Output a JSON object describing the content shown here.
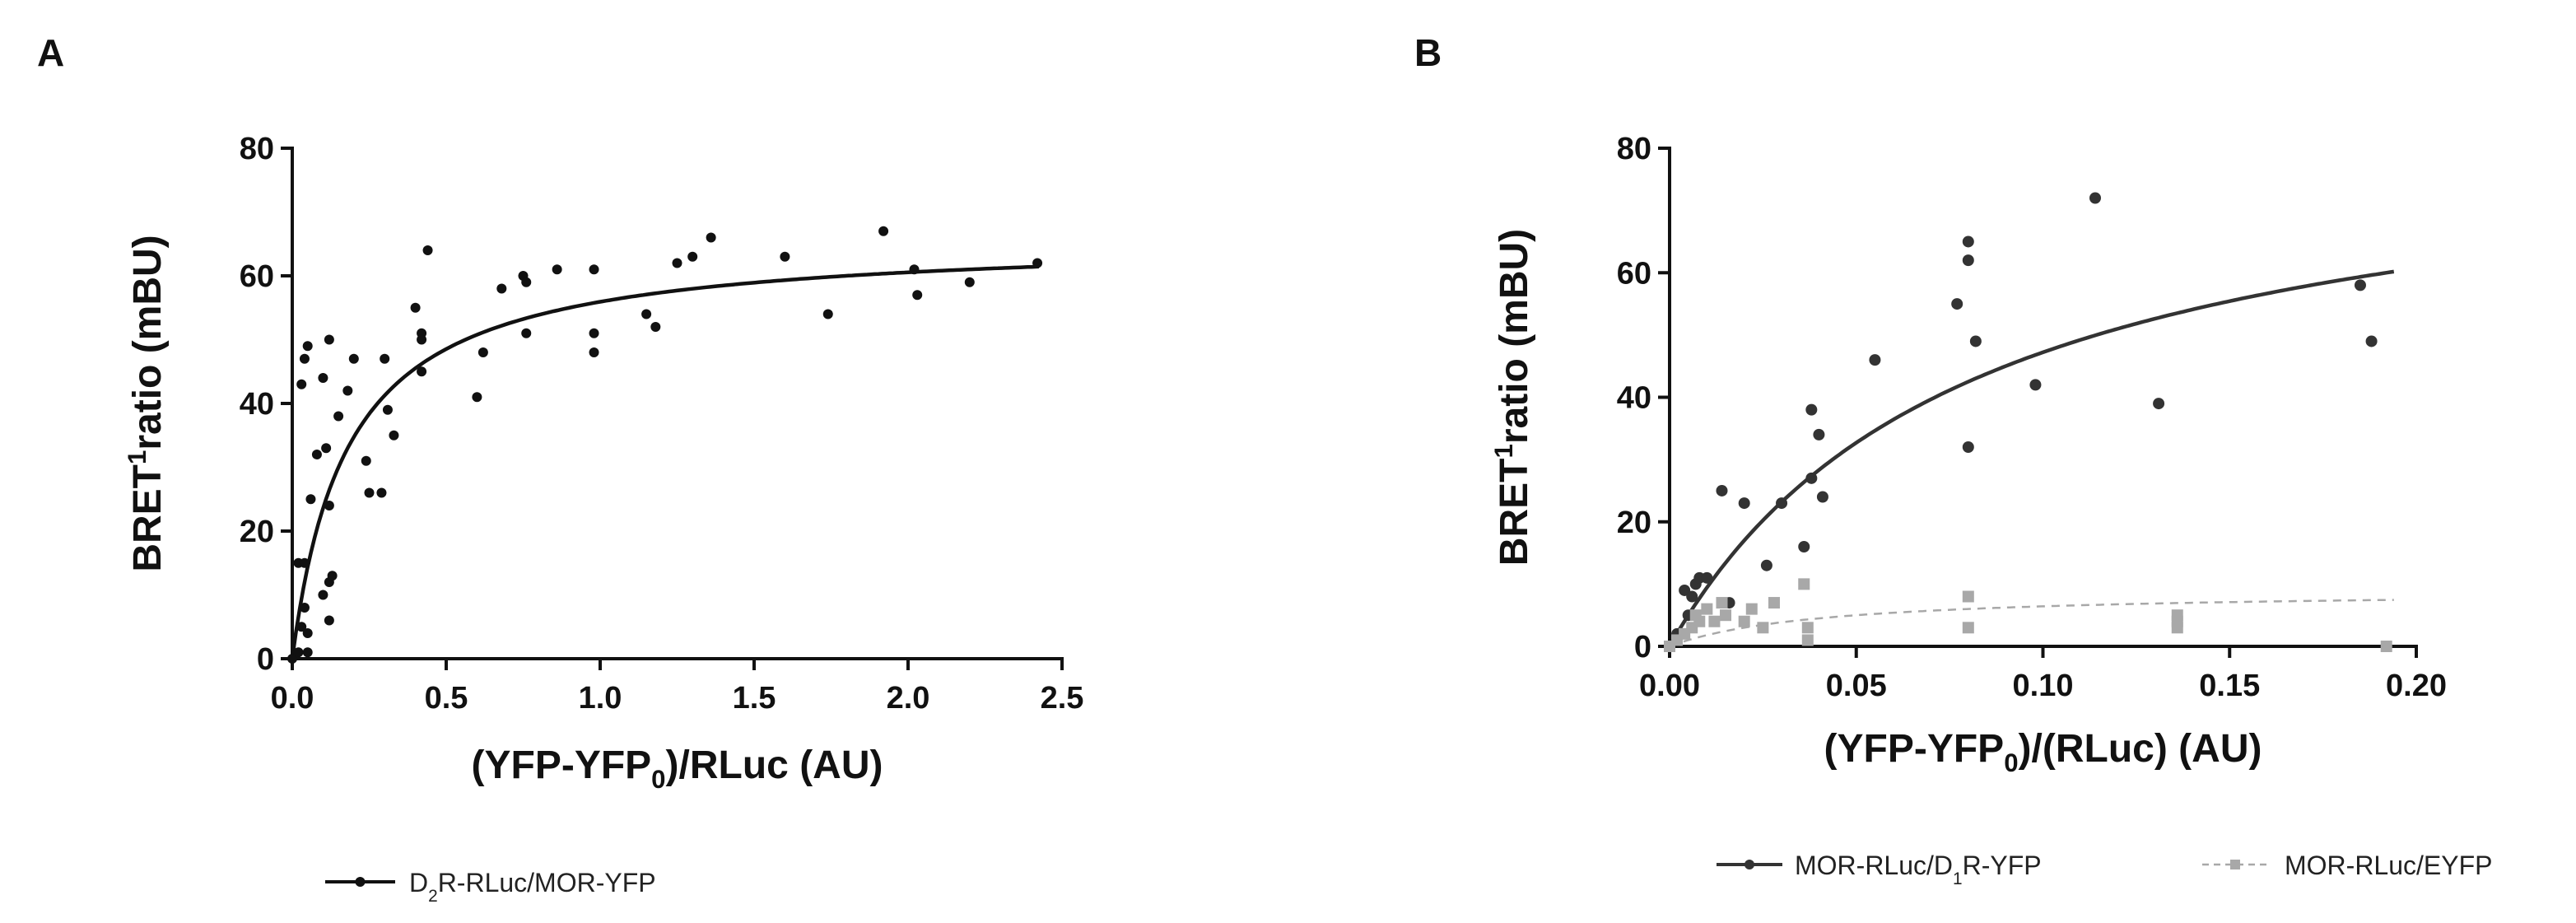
{
  "chart_data": [
    {
      "panel": "A",
      "type": "scatter",
      "title": "",
      "ylabel": "BRET¹ratio (mBU)",
      "ylabel_parts": [
        "BRET",
        "1",
        "ratio (mBU)"
      ],
      "xlabel": "(YFP-YFP0)/RLuc (AU)",
      "xlabel_parts": [
        "(YFP-YFP",
        "0",
        ")/RLuc (AU)"
      ],
      "xlim": [
        0,
        2.5
      ],
      "ylim": [
        0,
        80
      ],
      "xticks": [
        0.0,
        0.5,
        1.0,
        1.5,
        2.0,
        2.5
      ],
      "xtick_labels": [
        "0.0",
        "0.5",
        "1.0",
        "1.5",
        "2.0",
        "2.5"
      ],
      "yticks": [
        0,
        20,
        40,
        60,
        80
      ],
      "ytick_labels": [
        "0",
        "20",
        "40",
        "60",
        "80"
      ],
      "series": [
        {
          "name": "D2R-RLuc/MOR-YFP",
          "legend_parts": [
            "D",
            "2",
            "R-RLuc/MOR-YFP"
          ],
          "color": "#111111",
          "marker": "circle",
          "line_style": "solid",
          "fit": {
            "model": "hyperbolic",
            "bmax": 66,
            "kd": 0.18
          },
          "points": [
            [
              0.0,
              0.0
            ],
            [
              0.02,
              1
            ],
            [
              0.03,
              5
            ],
            [
              0.04,
              8
            ],
            [
              0.05,
              4
            ],
            [
              0.05,
              1
            ],
            [
              0.02,
              15
            ],
            [
              0.04,
              15
            ],
            [
              0.03,
              43
            ],
            [
              0.04,
              47
            ],
            [
              0.05,
              49
            ],
            [
              0.06,
              25
            ],
            [
              0.08,
              32
            ],
            [
              0.1,
              44
            ],
            [
              0.11,
              33
            ],
            [
              0.12,
              50
            ],
            [
              0.1,
              10
            ],
            [
              0.12,
              12
            ],
            [
              0.13,
              13
            ],
            [
              0.12,
              6
            ],
            [
              0.12,
              24
            ],
            [
              0.15,
              38
            ],
            [
              0.18,
              42
            ],
            [
              0.2,
              47
            ],
            [
              0.24,
              31
            ],
            [
              0.25,
              26
            ],
            [
              0.29,
              26
            ],
            [
              0.3,
              47
            ],
            [
              0.31,
              39
            ],
            [
              0.33,
              35
            ],
            [
              0.4,
              55
            ],
            [
              0.42,
              51
            ],
            [
              0.42,
              50
            ],
            [
              0.42,
              45
            ],
            [
              0.44,
              64
            ],
            [
              0.6,
              41
            ],
            [
              0.62,
              48
            ],
            [
              0.68,
              58
            ],
            [
              0.75,
              60
            ],
            [
              0.76,
              59
            ],
            [
              0.76,
              51
            ],
            [
              0.86,
              61
            ],
            [
              0.98,
              61
            ],
            [
              0.98,
              51
            ],
            [
              0.98,
              48
            ],
            [
              1.15,
              54
            ],
            [
              1.18,
              52
            ],
            [
              1.25,
              62
            ],
            [
              1.3,
              63
            ],
            [
              1.36,
              66
            ],
            [
              1.6,
              63
            ],
            [
              1.74,
              54
            ],
            [
              1.92,
              67
            ],
            [
              2.02,
              61
            ],
            [
              2.03,
              57
            ],
            [
              2.2,
              59
            ],
            [
              2.42,
              62
            ]
          ]
        }
      ]
    },
    {
      "panel": "B",
      "type": "scatter",
      "title": "",
      "ylabel": "BRET¹ratio (mBU)",
      "ylabel_parts": [
        "BRET",
        "1",
        "ratio (mBU)"
      ],
      "xlabel": "(YFP-YFP0)/(RLuc) (AU)",
      "xlabel_parts": [
        "(YFP-YFP",
        "0",
        ")/(RLuc) (AU)"
      ],
      "xlim": [
        0,
        0.2
      ],
      "ylim": [
        0,
        80
      ],
      "xticks": [
        0.0,
        0.05,
        0.1,
        0.15,
        0.2
      ],
      "xtick_labels": [
        "0.00",
        "0.05",
        "0.10",
        "0.15",
        "0.20"
      ],
      "yticks": [
        0,
        20,
        40,
        60,
        80
      ],
      "ytick_labels": [
        "0",
        "20",
        "40",
        "60",
        "80"
      ],
      "series": [
        {
          "name": "MOR-RLuc/D1R-YFP",
          "legend_parts": [
            "MOR-RLuc/D",
            "1",
            "R-YFP"
          ],
          "color": "#333333",
          "marker": "circle",
          "line_style": "solid",
          "fit": {
            "model": "hyperbolic",
            "bmax": 85,
            "kd": 0.08
          },
          "points": [
            [
              0.0,
              0.0
            ],
            [
              0.002,
              2
            ],
            [
              0.004,
              9
            ],
            [
              0.005,
              5
            ],
            [
              0.006,
              8
            ],
            [
              0.007,
              10
            ],
            [
              0.008,
              11
            ],
            [
              0.01,
              11
            ],
            [
              0.014,
              25
            ],
            [
              0.016,
              7
            ],
            [
              0.02,
              23
            ],
            [
              0.026,
              13
            ],
            [
              0.03,
              23
            ],
            [
              0.036,
              16
            ],
            [
              0.038,
              38
            ],
            [
              0.038,
              27
            ],
            [
              0.04,
              34
            ],
            [
              0.041,
              24
            ],
            [
              0.055,
              46
            ],
            [
              0.077,
              55
            ],
            [
              0.08,
              65
            ],
            [
              0.08,
              62
            ],
            [
              0.08,
              32
            ],
            [
              0.082,
              49
            ],
            [
              0.098,
              42
            ],
            [
              0.114,
              72
            ],
            [
              0.131,
              39
            ],
            [
              0.185,
              58
            ],
            [
              0.188,
              49
            ]
          ]
        },
        {
          "name": "MOR-RLuc/EYFP",
          "legend_parts": [
            "MOR-RLuc/EYFP"
          ],
          "color": "#a8a8a8",
          "marker": "square",
          "line_style": "dashed",
          "fit": {
            "model": "hyperbolic",
            "bmax": 9,
            "kd": 0.04
          },
          "points": [
            [
              0.0,
              0.0
            ],
            [
              0.002,
              1
            ],
            [
              0.004,
              2
            ],
            [
              0.006,
              3
            ],
            [
              0.007,
              5
            ],
            [
              0.008,
              4
            ],
            [
              0.01,
              6
            ],
            [
              0.012,
              4
            ],
            [
              0.014,
              7
            ],
            [
              0.015,
              5
            ],
            [
              0.02,
              4
            ],
            [
              0.022,
              6
            ],
            [
              0.025,
              3
            ],
            [
              0.028,
              7
            ],
            [
              0.036,
              10
            ],
            [
              0.037,
              3
            ],
            [
              0.037,
              1
            ],
            [
              0.08,
              8
            ],
            [
              0.08,
              3
            ],
            [
              0.136,
              5
            ],
            [
              0.136,
              4
            ],
            [
              0.136,
              3
            ],
            [
              0.192,
              0
            ]
          ]
        }
      ]
    }
  ]
}
